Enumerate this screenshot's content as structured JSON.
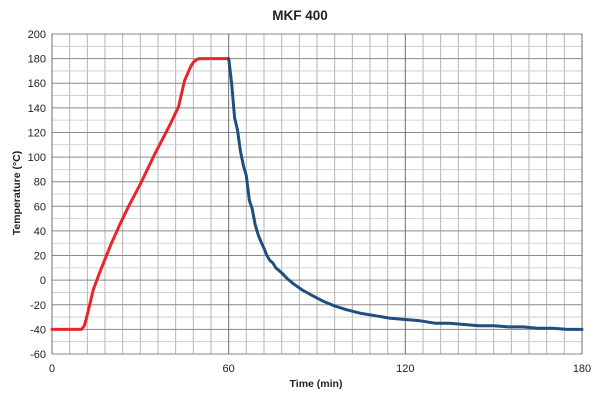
{
  "chart_data": {
    "type": "line",
    "title": "MKF 400",
    "xlabel": "Time (min)",
    "ylabel": "Temperature (°C)",
    "xlim": [
      0,
      180
    ],
    "ylim": [
      -60,
      200
    ],
    "x_ticks": [
      0,
      60,
      120,
      180
    ],
    "y_ticks": [
      -60,
      -40,
      -20,
      0,
      20,
      40,
      60,
      80,
      100,
      120,
      140,
      160,
      180,
      200
    ],
    "grid": true,
    "legend": "none",
    "series": [
      {
        "color": "#e8262a",
        "points": [
          [
            0,
            -40
          ],
          [
            10,
            -40
          ],
          [
            11,
            -37
          ],
          [
            12,
            -28
          ],
          [
            13,
            -18
          ],
          [
            14,
            -8
          ],
          [
            16,
            5
          ],
          [
            18,
            17
          ],
          [
            20,
            29
          ],
          [
            23,
            45
          ],
          [
            26,
            60
          ],
          [
            30,
            78
          ],
          [
            35,
            103
          ],
          [
            40,
            126
          ],
          [
            43,
            141
          ],
          [
            45,
            162
          ],
          [
            47,
            173
          ],
          [
            48,
            177
          ],
          [
            49,
            179
          ],
          [
            50,
            180
          ],
          [
            60,
            180
          ]
        ]
      },
      {
        "color": "#1f4e80",
        "points": [
          [
            60,
            180
          ],
          [
            61,
            160
          ],
          [
            62,
            132
          ],
          [
            63,
            122
          ],
          [
            64,
            105
          ],
          [
            65,
            93
          ],
          [
            66,
            85
          ],
          [
            67,
            65
          ],
          [
            68,
            58
          ],
          [
            69,
            45
          ],
          [
            70,
            37
          ],
          [
            71,
            31
          ],
          [
            72,
            26
          ],
          [
            73,
            20
          ],
          [
            74,
            16
          ],
          [
            75,
            14
          ],
          [
            76,
            10
          ],
          [
            78,
            6
          ],
          [
            80,
            1
          ],
          [
            82,
            -3
          ],
          [
            85,
            -8
          ],
          [
            88,
            -12
          ],
          [
            92,
            -17
          ],
          [
            96,
            -21
          ],
          [
            100,
            -24
          ],
          [
            105,
            -27
          ],
          [
            110,
            -29
          ],
          [
            115,
            -31
          ],
          [
            120,
            -32
          ],
          [
            125,
            -33
          ],
          [
            130,
            -35
          ],
          [
            135,
            -35
          ],
          [
            140,
            -36
          ],
          [
            145,
            -37
          ],
          [
            150,
            -37
          ],
          [
            155,
            -38
          ],
          [
            160,
            -38
          ],
          [
            165,
            -39
          ],
          [
            170,
            -39
          ],
          [
            175,
            -40
          ],
          [
            180,
            -40
          ]
        ]
      }
    ]
  }
}
